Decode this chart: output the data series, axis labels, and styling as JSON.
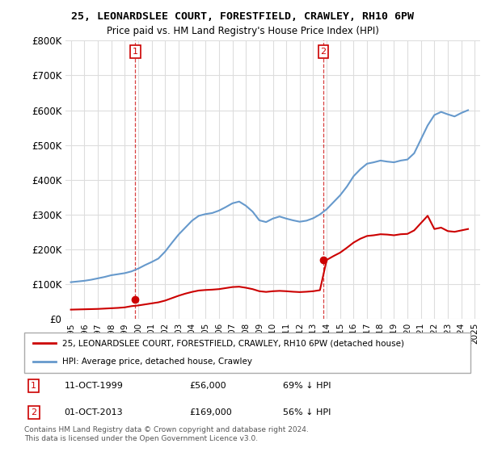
{
  "title": "25, LEONARDSLEE COURT, FORESTFIELD, CRAWLEY, RH10 6PW",
  "subtitle": "Price paid vs. HM Land Registry's House Price Index (HPI)",
  "ylim": [
    0,
    800000
  ],
  "yticks": [
    0,
    100000,
    200000,
    300000,
    400000,
    500000,
    600000,
    700000,
    800000
  ],
  "ytick_labels": [
    "£0",
    "£100K",
    "£200K",
    "£300K",
    "£400K",
    "£500K",
    "£600K",
    "£700K",
    "£800K"
  ],
  "line1_label": "25, LEONARDSLEE COURT, FORESTFIELD, CRAWLEY, RH10 6PW (detached house)",
  "line2_label": "HPI: Average price, detached house, Crawley",
  "legend_note": "Contains HM Land Registry data © Crown copyright and database right 2024.\nThis data is licensed under the Open Government Licence v3.0.",
  "purchase1_date": "11-OCT-1999",
  "purchase1_price": "£56,000",
  "purchase1_hpi": "69% ↓ HPI",
  "purchase1_year": 1999.78,
  "purchase1_value": 56000,
  "purchase2_date": "01-OCT-2013",
  "purchase2_price": "£169,000",
  "purchase2_hpi": "56% ↓ HPI",
  "purchase2_year": 2013.75,
  "purchase2_value": 169000,
  "red_color": "#cc0000",
  "blue_color": "#6699cc",
  "dashed_color": "#cc0000",
  "background_color": "#ffffff",
  "grid_color": "#dddddd",
  "years_hpi": [
    1995.0,
    1995.5,
    1996.0,
    1996.5,
    1997.0,
    1997.5,
    1998.0,
    1998.5,
    1999.0,
    1999.5,
    2000.0,
    2000.5,
    2001.0,
    2001.5,
    2002.0,
    2002.5,
    2003.0,
    2003.5,
    2004.0,
    2004.5,
    2005.0,
    2005.5,
    2006.0,
    2006.5,
    2007.0,
    2007.5,
    2008.0,
    2008.5,
    2009.0,
    2009.5,
    2010.0,
    2010.5,
    2011.0,
    2011.5,
    2012.0,
    2012.5,
    2013.0,
    2013.5,
    2014.0,
    2014.5,
    2015.0,
    2015.5,
    2016.0,
    2016.5,
    2017.0,
    2017.5,
    2018.0,
    2018.5,
    2019.0,
    2019.5,
    2020.0,
    2020.5,
    2021.0,
    2021.5,
    2022.0,
    2022.5,
    2023.0,
    2023.5,
    2024.0,
    2024.5
  ],
  "hpi_values": [
    105000,
    107000,
    109000,
    112000,
    116000,
    120000,
    125000,
    128000,
    131000,
    136000,
    144000,
    154000,
    163000,
    173000,
    193000,
    218000,
    242000,
    262000,
    282000,
    296000,
    301000,
    304000,
    311000,
    321000,
    332000,
    337000,
    325000,
    308000,
    283000,
    278000,
    288000,
    294000,
    288000,
    283000,
    279000,
    282000,
    289000,
    300000,
    315000,
    335000,
    355000,
    380000,
    410000,
    430000,
    446000,
    450000,
    455000,
    452000,
    450000,
    455000,
    458000,
    476000,
    516000,
    556000,
    586000,
    595000,
    588000,
    582000,
    592000,
    600000
  ],
  "years_red": [
    1995.0,
    1995.5,
    1996.0,
    1996.5,
    1997.0,
    1997.5,
    1998.0,
    1998.5,
    1999.0,
    1999.5,
    2000.0,
    2000.5,
    2001.0,
    2001.5,
    2002.0,
    2002.5,
    2003.0,
    2003.5,
    2004.0,
    2004.5,
    2005.0,
    2005.5,
    2006.0,
    2006.5,
    2007.0,
    2007.5,
    2008.0,
    2008.5,
    2009.0,
    2009.5,
    2010.0,
    2010.5,
    2011.0,
    2011.5,
    2012.0,
    2012.5,
    2013.0,
    2013.5,
    2014.0,
    2014.5,
    2015.0,
    2015.5,
    2016.0,
    2016.5,
    2017.0,
    2017.5,
    2018.0,
    2018.5,
    2019.0,
    2019.5,
    2020.0,
    2020.5,
    2021.0,
    2021.5,
    2022.0,
    2022.5,
    2023.0,
    2023.5,
    2024.0,
    2024.5
  ],
  "red_values": [
    26000,
    26500,
    27000,
    27500,
    28000,
    29000,
    30000,
    31000,
    32500,
    36000,
    38000,
    41000,
    44000,
    47000,
    52000,
    59000,
    66000,
    72000,
    77000,
    81000,
    82500,
    83500,
    85000,
    88000,
    91000,
    92000,
    89000,
    85000,
    79000,
    77000,
    79000,
    80000,
    79000,
    77500,
    76500,
    77500,
    79000,
    82000,
    169000,
    180000,
    190000,
    204000,
    219000,
    230000,
    238000,
    240000,
    243000,
    242000,
    240000,
    243000,
    244000,
    254000,
    275000,
    296000,
    258000,
    262000,
    252000,
    250000,
    254000,
    258000
  ]
}
